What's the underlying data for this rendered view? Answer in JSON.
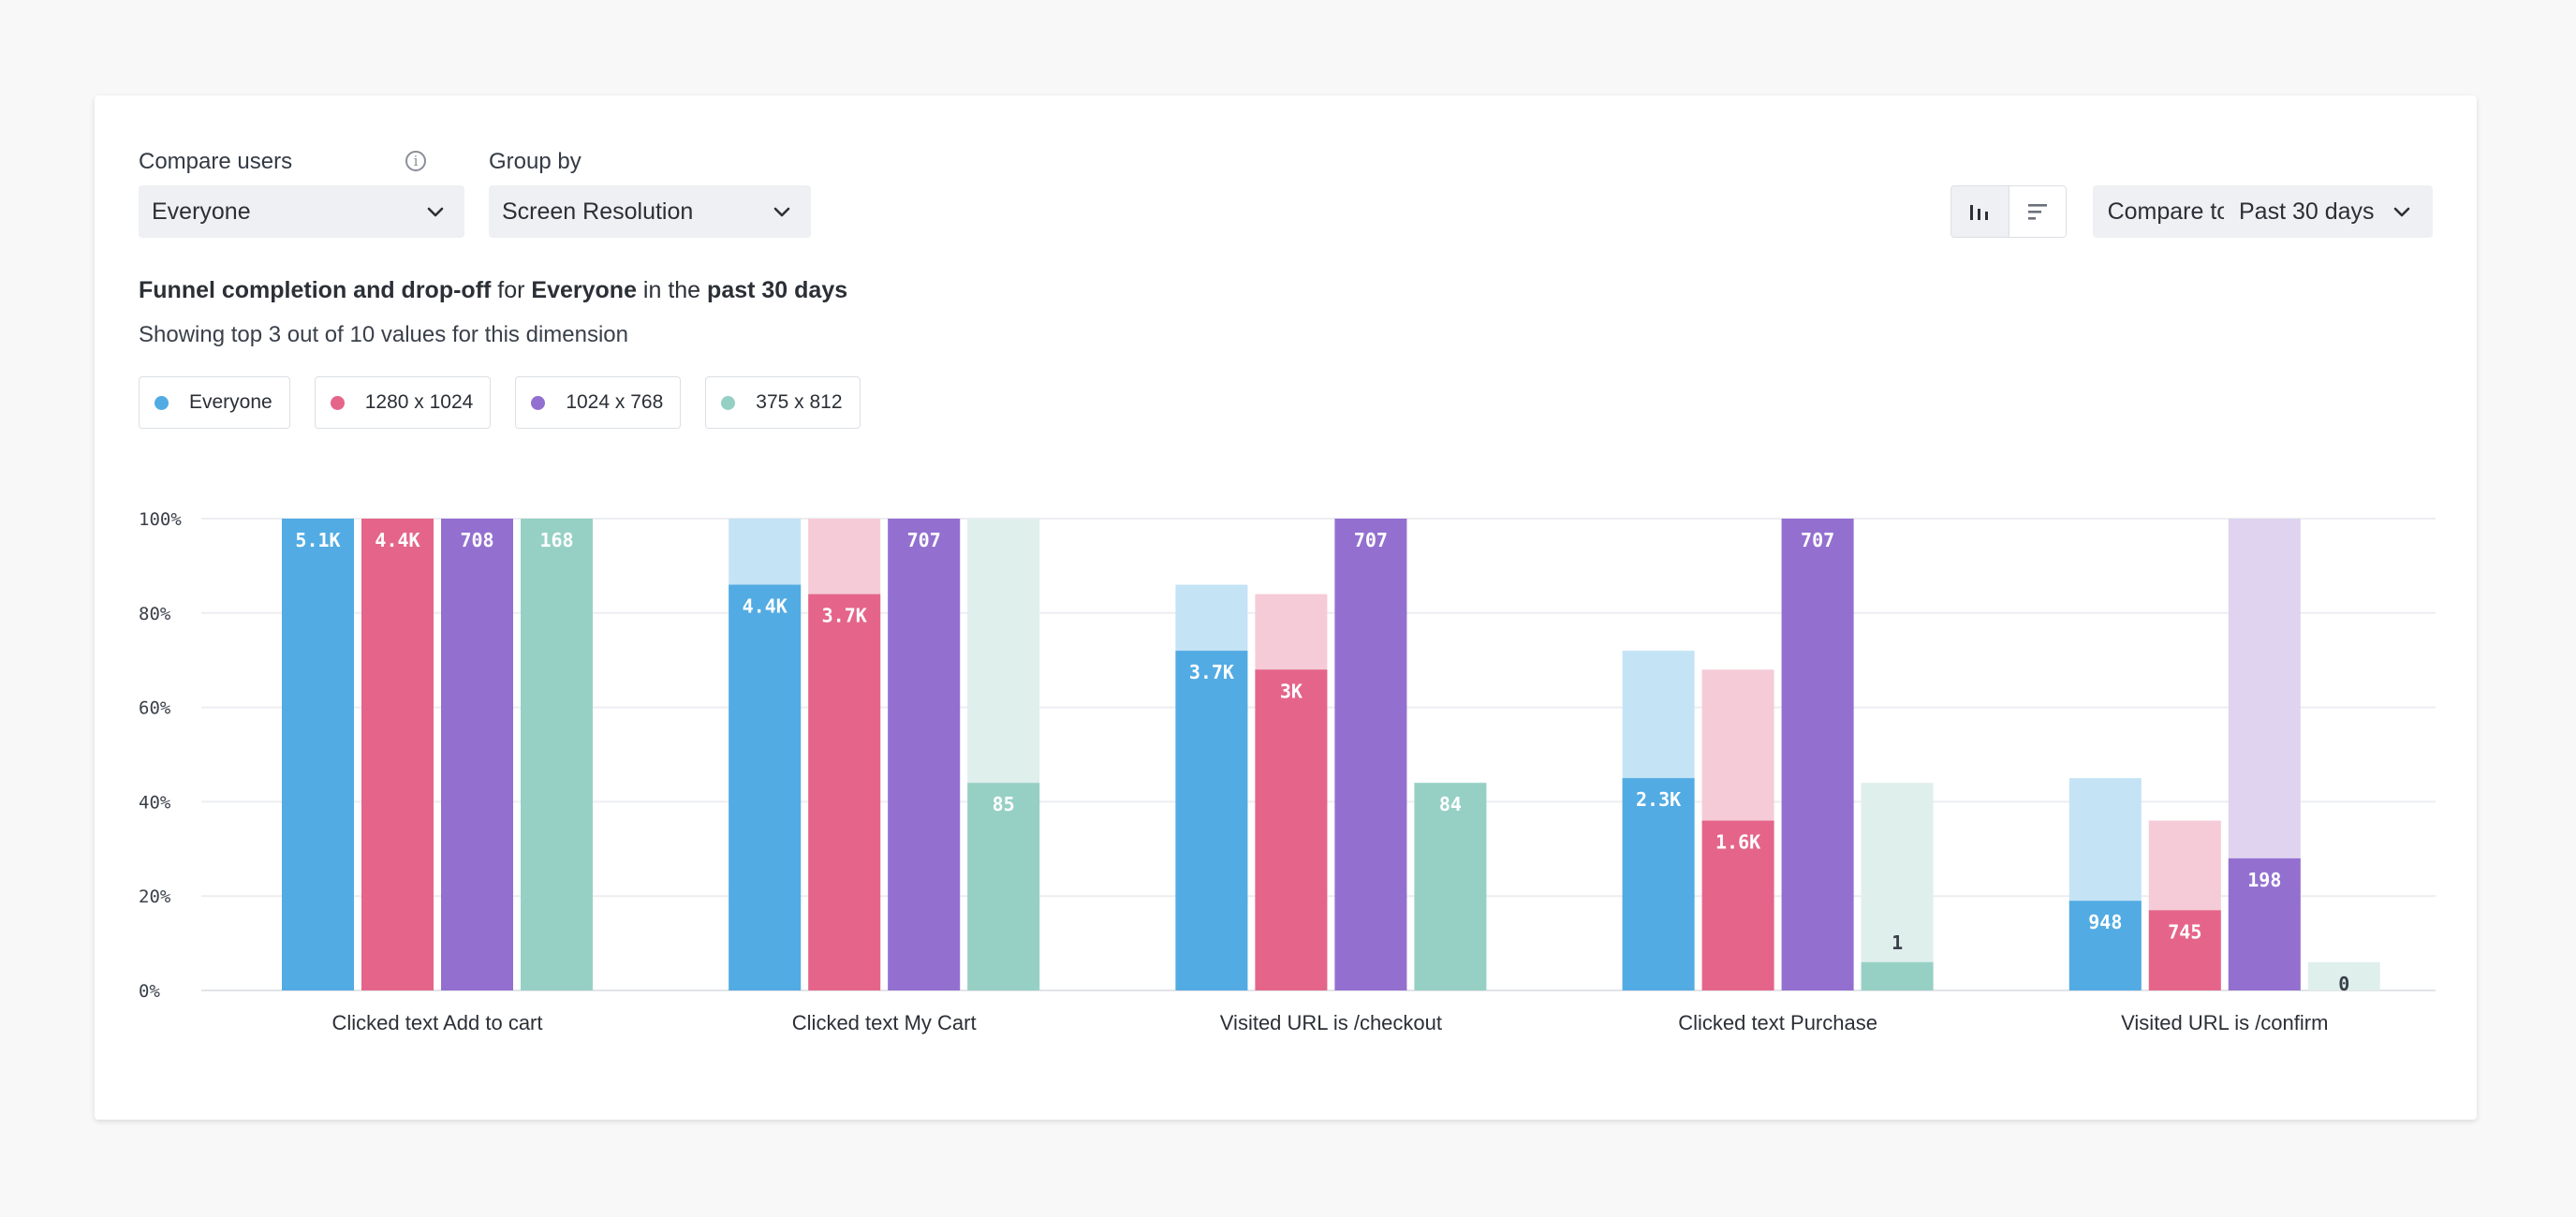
{
  "controls": {
    "compare_users_label": "Compare users",
    "compare_users_value": "Everyone",
    "group_by_label": "Group by",
    "group_by_value": "Screen Resolution",
    "compare_past_label": "Compare to past",
    "date_range_value": "Past 30 days",
    "view_modes": [
      "bar-chart-icon",
      "horizontal-bar-icon"
    ]
  },
  "summary": {
    "part1": "Funnel completion and drop-off",
    "part2": " for ",
    "part3": "Everyone",
    "part4": " in the ",
    "part5": "past 30 days",
    "subtext": "Showing top 3 out of 10 values for this dimension"
  },
  "legend": [
    {
      "label": "Everyone",
      "color": "#52abe3"
    },
    {
      "label": "1280 x 1024",
      "color": "#e5658a"
    },
    {
      "label": "1024 x 768",
      "color": "#9370cf"
    },
    {
      "label": "375 x 812",
      "color": "#96d0c5"
    }
  ],
  "chart_data": {
    "type": "bar",
    "categories": [
      "Clicked text Add to cart",
      "Clicked text My Cart",
      "Visited URL is /checkout",
      "Clicked text Purchase",
      "Visited URL is /confirm"
    ],
    "ylim": [
      0,
      100
    ],
    "yticks": [
      "0%",
      "20%",
      "40%",
      "60%",
      "80%",
      "100%"
    ],
    "grid": true,
    "series": [
      {
        "name": "Everyone",
        "color": "#52abe3",
        "light": "#c4e3f5",
        "values": [
          100,
          86,
          72,
          45,
          19
        ],
        "previous": [
          100,
          100,
          86,
          72,
          45
        ],
        "labels": [
          "5.1K",
          "4.4K",
          "3.7K",
          "2.3K",
          "948"
        ]
      },
      {
        "name": "1280 x 1024",
        "color": "#e5658a",
        "light": "#f5cbd7",
        "values": [
          100,
          84,
          68,
          36,
          17
        ],
        "previous": [
          100,
          100,
          84,
          68,
          36
        ],
        "labels": [
          "4.4K",
          "3.7K",
          "3K",
          "1.6K",
          "745"
        ]
      },
      {
        "name": "1024 x 768",
        "color": "#9370cf",
        "light": "#dfd3ef",
        "values": [
          100,
          100,
          100,
          100,
          28
        ],
        "previous": [
          100,
          100,
          100,
          100,
          100
        ],
        "labels": [
          "708",
          "707",
          "707",
          "707",
          "198"
        ]
      },
      {
        "name": "375 x 812",
        "color": "#96d0c5",
        "light": "#dfefec",
        "values": [
          100,
          44,
          44,
          6,
          0
        ],
        "previous": [
          100,
          100,
          44,
          44,
          6
        ],
        "labels": [
          "168",
          "85",
          "84",
          "1",
          "0"
        ]
      }
    ]
  }
}
